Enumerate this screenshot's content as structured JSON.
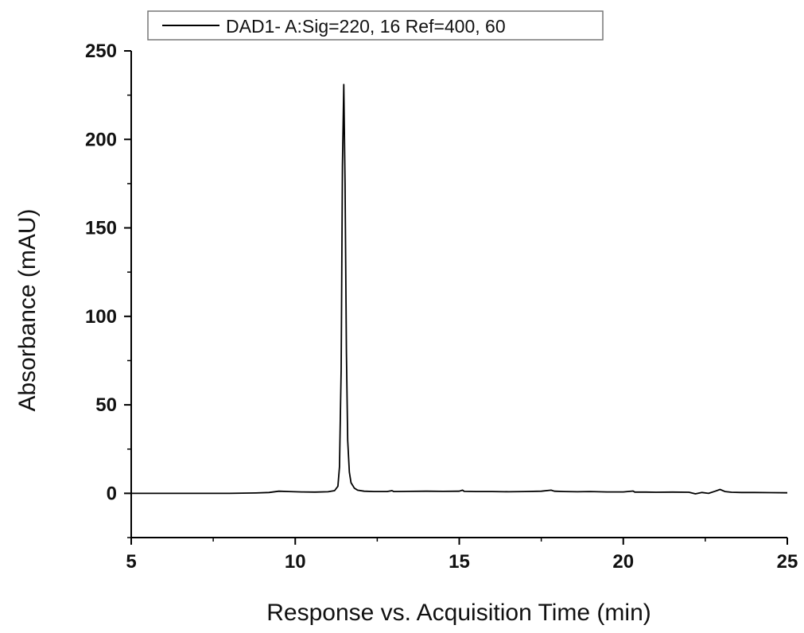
{
  "chart_data": {
    "type": "line",
    "title": "",
    "xlabel": "Response vs. Acquisition Time (min)",
    "ylabel": "Absorbance (mAU)",
    "xlim": [
      5,
      25
    ],
    "ylim": [
      -25,
      250
    ],
    "x_ticks": [
      5,
      10,
      15,
      20,
      25
    ],
    "y_ticks": [
      0,
      50,
      100,
      150,
      200,
      250
    ],
    "grid": false,
    "legend_position": "top-center",
    "series": [
      {
        "name": "DAD1- A:Sig=220, 16 Ref=400, 60",
        "color": "#000000",
        "x": [
          5,
          6,
          7,
          8,
          8.8,
          9.2,
          9.5,
          9.8,
          10.2,
          10.6,
          11.0,
          11.2,
          11.3,
          11.35,
          11.4,
          11.44,
          11.48,
          11.52,
          11.56,
          11.6,
          11.65,
          11.7,
          11.8,
          11.9,
          12.1,
          12.4,
          12.8,
          12.95,
          13.0,
          13.5,
          14.0,
          14.5,
          15.0,
          15.1,
          15.15,
          15.5,
          16.0,
          16.5,
          17.0,
          17.5,
          17.8,
          17.9,
          18.2,
          18.6,
          19.0,
          19.5,
          20.0,
          20.3,
          20.35,
          20.7,
          21.0,
          21.5,
          22.0,
          22.2,
          22.4,
          22.6,
          22.8,
          22.95,
          23.1,
          23.3,
          23.6,
          24.0,
          24.5,
          25.0
        ],
        "y": [
          0,
          0,
          0,
          0,
          0.2,
          0.5,
          1.2,
          1.0,
          0.8,
          0.7,
          0.9,
          1.5,
          4,
          15,
          70,
          185,
          231,
          175,
          80,
          30,
          12,
          6,
          3,
          1.8,
          1.2,
          1.0,
          1.0,
          1.5,
          1.0,
          1.1,
          1.2,
          1.1,
          1.2,
          1.8,
          1.1,
          1.0,
          1.0,
          0.9,
          1.0,
          1.2,
          1.8,
          1.2,
          1.0,
          0.9,
          1.0,
          0.8,
          0.8,
          1.3,
          0.7,
          0.7,
          0.6,
          0.7,
          0.6,
          -0.3,
          0.5,
          0.0,
          1.2,
          2.2,
          1.0,
          0.6,
          0.5,
          0.5,
          0.4,
          0.3
        ]
      }
    ]
  }
}
